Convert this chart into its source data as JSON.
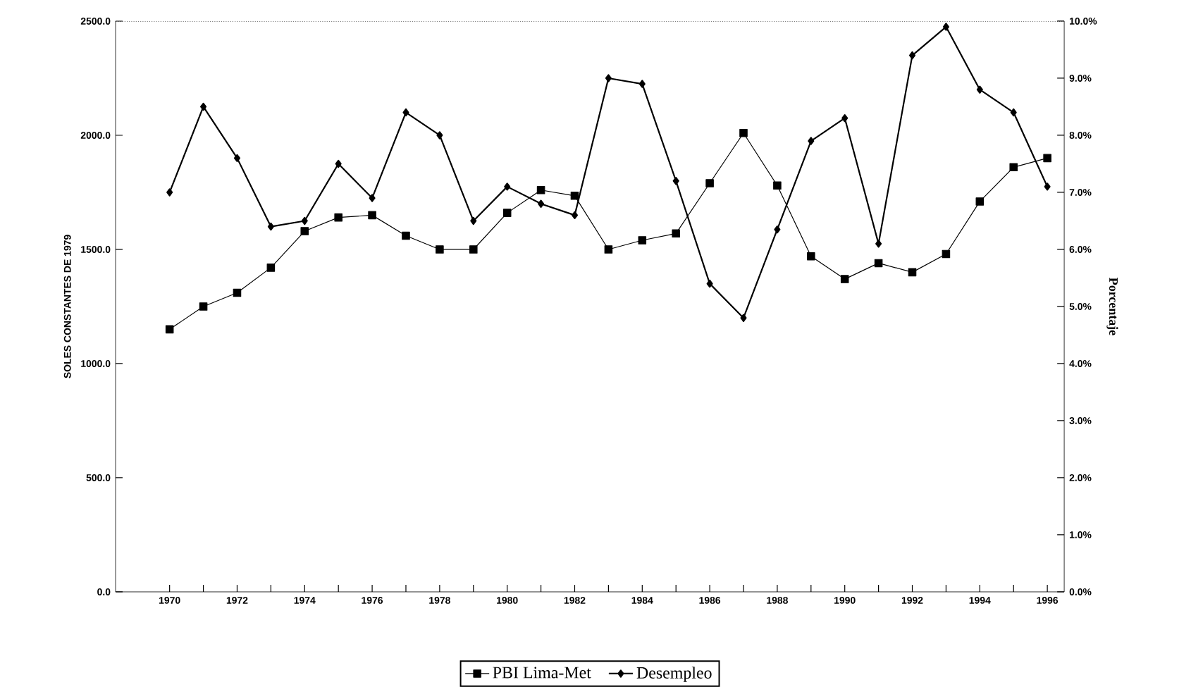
{
  "chart_data": {
    "type": "line",
    "ylabel": "SOLES CONSTANTES DE 1979",
    "y2label": "Porcentaje",
    "x": [
      1970,
      1971,
      1972,
      1973,
      1974,
      1975,
      1976,
      1977,
      1978,
      1979,
      1980,
      1981,
      1982,
      1983,
      1984,
      1985,
      1986,
      1987,
      1988,
      1989,
      1990,
      1991,
      1992,
      1993,
      1994,
      1995,
      1996
    ],
    "series": [
      {
        "name": "PBI Lima-Met",
        "color": "#000000",
        "marker": "square",
        "axis": "y",
        "values": [
          1150,
          1250,
          1310,
          1420,
          1580,
          1640,
          1650,
          1560,
          1500,
          1500,
          1660,
          1760,
          1735,
          1500,
          1540,
          1570,
          1790,
          2010,
          1780,
          1470,
          1370,
          1440,
          1400,
          1480,
          1710,
          1860,
          1900
        ]
      },
      {
        "name": "Desempleo",
        "color": "#000000",
        "marker": "diamond",
        "axis": "y2",
        "values": [
          7.0,
          8.5,
          7.6,
          6.4,
          6.5,
          7.5,
          6.9,
          8.4,
          8.0,
          6.5,
          7.1,
          6.8,
          6.6,
          9.0,
          8.9,
          7.2,
          5.4,
          4.8,
          6.35,
          7.9,
          8.3,
          6.1,
          9.4,
          9.9,
          8.8,
          8.4,
          7.1
        ]
      }
    ],
    "xlim": [
      1968.4,
      1996.5
    ],
    "xticks": [
      {
        "value": 1970,
        "label": "1970"
      },
      {
        "value": 1971,
        "label": null
      },
      {
        "value": 1972,
        "label": "1972"
      },
      {
        "value": 1973,
        "label": null
      },
      {
        "value": 1974,
        "label": "1974"
      },
      {
        "value": 1975,
        "label": null
      },
      {
        "value": 1976,
        "label": "1976"
      },
      {
        "value": 1977,
        "label": null
      },
      {
        "value": 1978,
        "label": "1978"
      },
      {
        "value": 1979,
        "label": null
      },
      {
        "value": 1980,
        "label": "1980"
      },
      {
        "value": 1981,
        "label": null
      },
      {
        "value": 1982,
        "label": "1982"
      },
      {
        "value": 1983,
        "label": null
      },
      {
        "value": 1984,
        "label": "1984"
      },
      {
        "value": 1985,
        "label": null
      },
      {
        "value": 1986,
        "label": "1986"
      },
      {
        "value": 1987,
        "label": null
      },
      {
        "value": 1988,
        "label": "1988"
      },
      {
        "value": 1989,
        "label": null
      },
      {
        "value": 1990,
        "label": "1990"
      },
      {
        "value": 1991,
        "label": null
      },
      {
        "value": 1992,
        "label": "1992"
      },
      {
        "value": 1993,
        "label": null
      },
      {
        "value": 1994,
        "label": "1994"
      },
      {
        "value": 1995,
        "label": null
      },
      {
        "value": 1996,
        "label": "1996"
      }
    ],
    "ylim": [
      0,
      2500
    ],
    "yticks": [
      {
        "value": 0,
        "label": "0.0"
      },
      {
        "value": 500,
        "label": "500.0"
      },
      {
        "value": 1000,
        "label": "1000.0"
      },
      {
        "value": 1500,
        "label": "1500.0"
      },
      {
        "value": 2000,
        "label": "2000.0"
      },
      {
        "value": 2500,
        "label": "2500.0"
      }
    ],
    "y2lim": [
      0,
      10
    ],
    "y2ticks": [
      {
        "value": 0,
        "label": "0.0%"
      },
      {
        "value": 1,
        "label": "1.0%"
      },
      {
        "value": 2,
        "label": "2.0%"
      },
      {
        "value": 3,
        "label": "3.0%"
      },
      {
        "value": 4,
        "label": "4.0%"
      },
      {
        "value": 5,
        "label": "5.0%"
      },
      {
        "value": 6,
        "label": "6.0%"
      },
      {
        "value": 7,
        "label": "7.0%"
      },
      {
        "value": 8,
        "label": "8.0%"
      },
      {
        "value": 9,
        "label": "9.0%"
      },
      {
        "value": 10,
        "label": "10.0%"
      }
    ],
    "legend": "bottom",
    "grid": false
  }
}
